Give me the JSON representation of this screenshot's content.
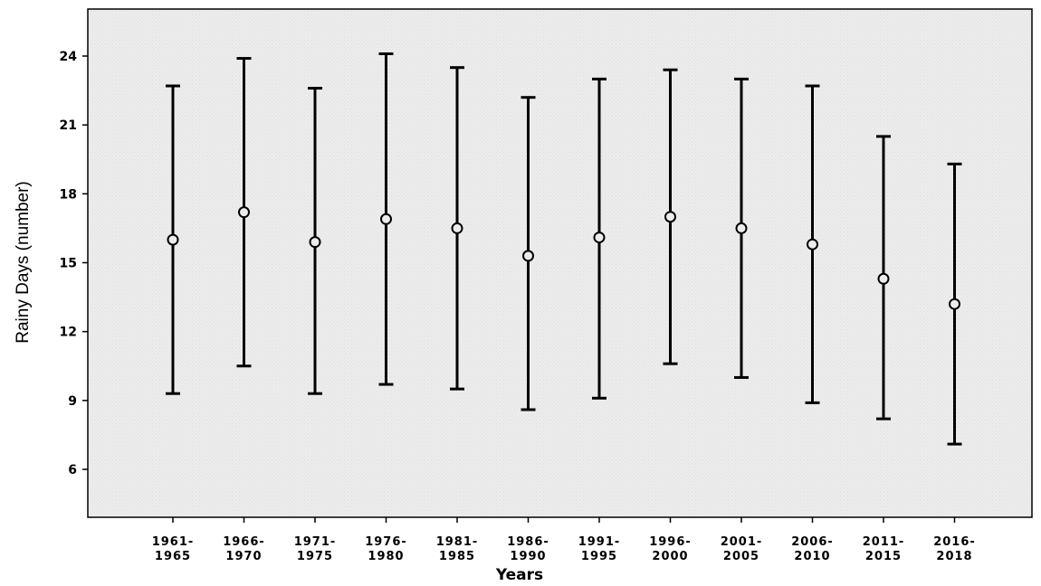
{
  "chart_data": {
    "type": "errorbar",
    "title": "",
    "xlabel": "Years",
    "ylabel": "Rainy Days (number)",
    "ylim": [
      4.5,
      26.0
    ],
    "yticks": [
      "6",
      "9",
      "12",
      "15",
      "18",
      "21",
      "24"
    ],
    "categories": [
      [
        "1961-",
        "1965"
      ],
      [
        "1966-",
        "1970"
      ],
      [
        "1971-",
        "1975"
      ],
      [
        "1976-",
        "1980"
      ],
      [
        "1981-",
        "1985"
      ],
      [
        "1986-",
        "1990"
      ],
      [
        "1991-",
        "1995"
      ],
      [
        "1996-",
        "2000"
      ],
      [
        "2001-",
        "2005"
      ],
      [
        "2006-",
        "2010"
      ],
      [
        "2011-",
        "2015"
      ],
      [
        "2016-",
        "2018"
      ]
    ],
    "means": [
      16.0,
      17.2,
      15.9,
      16.9,
      16.5,
      15.3,
      16.1,
      17.0,
      16.5,
      15.8,
      14.3,
      13.2
    ],
    "upper": [
      22.7,
      23.9,
      22.6,
      24.1,
      23.5,
      22.2,
      23.0,
      23.4,
      23.0,
      22.7,
      20.5,
      19.3
    ],
    "lower": [
      9.3,
      10.5,
      9.3,
      9.7,
      9.5,
      8.6,
      9.1,
      10.6,
      10.0,
      8.9,
      8.2,
      7.1
    ],
    "grid": false,
    "legend": "none",
    "colors": {
      "plot_background": "#ececec",
      "marks": "#000000",
      "page_background": "#ffffff"
    }
  }
}
